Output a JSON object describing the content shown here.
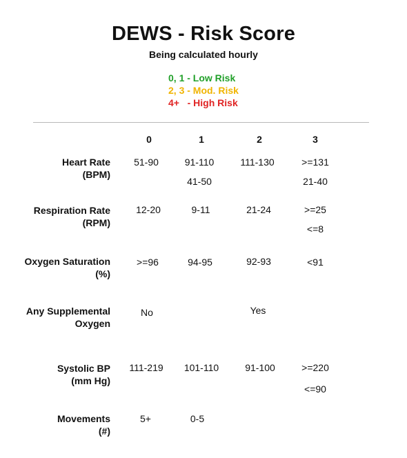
{
  "header": {
    "title": "DEWS - Risk Score",
    "subtitle": "Being calculated hourly"
  },
  "legend": [
    {
      "text": "0, 1 - Low Risk",
      "color": "#22a02a"
    },
    {
      "text": "2, 3 - Mod. Risk",
      "color": "#f0b400"
    },
    {
      "text": "4+   - High Risk",
      "color": "#e02424"
    }
  ],
  "columns": [
    "0",
    "1",
    "2",
    "3"
  ],
  "rows": [
    {
      "label_line1": "Heart Rate",
      "label_line2": "(BPM)",
      "c0": "51-90",
      "c1a": "91-110",
      "c1b": "41-50",
      "c2": "111-130",
      "c3a": ">=131",
      "c3b": "21-40"
    },
    {
      "label_line1": "Respiration Rate",
      "label_line2": "(RPM)",
      "c0": "12-20",
      "c1": "9-11",
      "c2": "21-24",
      "c3a": ">=25",
      "c3b": "<=8"
    },
    {
      "label_line1": "Oxygen Saturation",
      "label_line2": "(%)",
      "c0": ">=96",
      "c1": "94-95",
      "c2": "92-93",
      "c3": "<91"
    },
    {
      "label_line1": "Any Supplemental",
      "label_line2": "Oxygen",
      "c0": "No",
      "c2": "Yes"
    },
    {
      "label_line1": "Systolic  BP",
      "label_line2": "(mm Hg)",
      "c0": "111-219",
      "c1": "101-110",
      "c2": "91-100",
      "c3a": ">=220",
      "c3b": "<=90"
    },
    {
      "label_line1": "Movements",
      "label_line2": "(#)",
      "c0": "5+",
      "c1": "0-5"
    }
  ]
}
